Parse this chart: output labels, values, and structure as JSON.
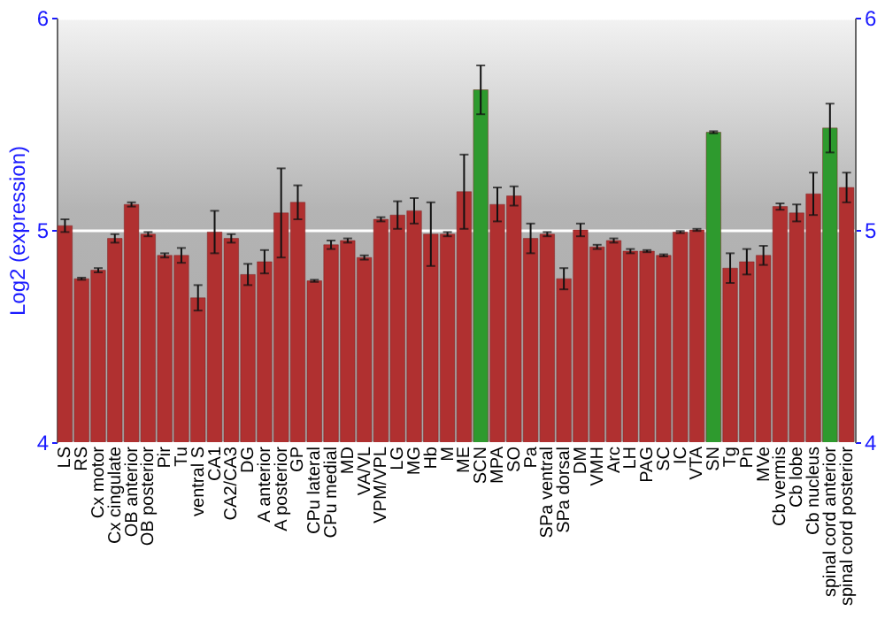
{
  "chart_data": {
    "type": "bar",
    "ylabel": "Log2 (expression)",
    "categories": [
      "LS",
      "RS",
      "Cx motor",
      "Cx cingulate",
      "OB anterior",
      "OB posterior",
      "Pir",
      "Tu",
      "ventral S",
      "CA1",
      "CA2/CA3",
      "DG",
      "A anterior",
      "A posterior",
      "GP",
      "CPu lateral",
      "CPu medial",
      "MD",
      "VA/VL",
      "VPM/VPL",
      "LG",
      "MG",
      "Hb",
      "M",
      "ME",
      "SCN",
      "MPA",
      "SO",
      "Pa",
      "SPa ventral",
      "SPa dorsal",
      "DM",
      "VMH",
      "Arc",
      "LH",
      "PAG",
      "SC",
      "IC",
      "VTA",
      "SN",
      "Tg",
      "Pn",
      "MVe",
      "Cb vermis",
      "Cb lobe",
      "Cb nucleus",
      "spinal cord anterior",
      "spinal cord posterior"
    ],
    "values": [
      5.02,
      4.77,
      4.81,
      4.96,
      5.12,
      4.98,
      4.88,
      4.88,
      4.68,
      4.99,
      4.96,
      4.79,
      4.85,
      5.08,
      5.13,
      4.76,
      4.93,
      4.95,
      4.87,
      5.05,
      5.07,
      5.09,
      4.98,
      4.98,
      5.18,
      5.66,
      5.12,
      5.16,
      4.96,
      4.98,
      4.77,
      5.0,
      4.92,
      4.95,
      4.9,
      4.9,
      4.88,
      4.99,
      5.0,
      5.46,
      4.82,
      4.85,
      4.88,
      5.11,
      5.08,
      5.17,
      5.48,
      5.2
    ],
    "errors": [
      0.03,
      0.005,
      0.01,
      0.02,
      0.01,
      0.01,
      0.01,
      0.035,
      0.06,
      0.1,
      0.02,
      0.05,
      0.055,
      0.21,
      0.08,
      0.005,
      0.02,
      0.01,
      0.01,
      0.01,
      0.065,
      0.06,
      0.15,
      0.01,
      0.175,
      0.115,
      0.08,
      0.045,
      0.07,
      0.01,
      0.05,
      0.03,
      0.01,
      0.01,
      0.01,
      0.005,
      0.005,
      0.005,
      0.005,
      0.005,
      0.07,
      0.06,
      0.045,
      0.015,
      0.04,
      0.1,
      0.115,
      0.07
    ],
    "colors": [
      "#b03030",
      "#b03030",
      "#b03030",
      "#b03030",
      "#b03030",
      "#b03030",
      "#b03030",
      "#b03030",
      "#b03030",
      "#b03030",
      "#b03030",
      "#b03030",
      "#b03030",
      "#b03030",
      "#b03030",
      "#b03030",
      "#b03030",
      "#b03030",
      "#b03030",
      "#b03030",
      "#b03030",
      "#b03030",
      "#b03030",
      "#b03030",
      "#b03030",
      "#2e9a2e",
      "#b03030",
      "#b03030",
      "#b03030",
      "#b03030",
      "#b03030",
      "#b03030",
      "#b03030",
      "#b03030",
      "#b03030",
      "#b03030",
      "#b03030",
      "#b03030",
      "#b03030",
      "#2e9a2e",
      "#b03030",
      "#b03030",
      "#b03030",
      "#b03030",
      "#b03030",
      "#b03030",
      "#2e9a2e",
      "#b03030"
    ],
    "ylim": [
      4,
      6
    ],
    "yticks": [
      4,
      5,
      6
    ],
    "y2lim": [
      4,
      6
    ],
    "y2ticks": [
      4,
      5,
      6
    ],
    "grid": "y"
  }
}
